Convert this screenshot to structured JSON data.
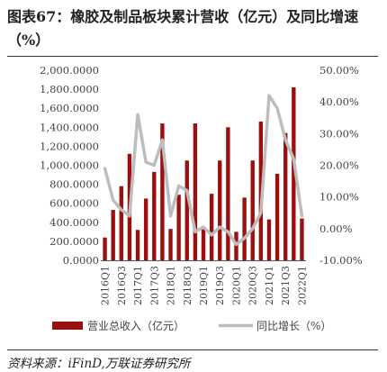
{
  "title": "图表67：橡胶及制品板块累计营收（亿元）及同比增速（%）",
  "source": "资料来源：iFinD,万联证券研究所",
  "colors": {
    "bar": "#9b0f0f",
    "line": "#bdbdbd",
    "axis": "#555555",
    "text": "#444444"
  },
  "chart_data": {
    "type": "bar",
    "categories": [
      "2016Q1",
      "2016Q2",
      "2016Q3",
      "2016Q4",
      "2017Q1",
      "2017Q2",
      "2017Q3",
      "2017Q4",
      "2018Q1",
      "2018Q2",
      "2018Q3",
      "2018Q4",
      "2019Q1",
      "2019Q2",
      "2019Q3",
      "2019Q4",
      "2020Q1",
      "2020Q2",
      "2020Q3",
      "2020Q4",
      "2021Q1",
      "2021Q2",
      "2021Q3",
      "2021Q4",
      "2022Q1"
    ],
    "x_tick_labels": [
      "2016Q1",
      "2016Q3",
      "2017Q1",
      "2017Q3",
      "2018Q1",
      "2018Q3",
      "2019Q1",
      "2019Q3",
      "2020Q1",
      "2020Q3",
      "2021Q1",
      "2021Q3",
      "2022Q1"
    ],
    "series": [
      {
        "name": "营业总收入（亿元）",
        "type": "bar",
        "axis": "left",
        "values": [
          240,
          530,
          780,
          1120,
          320,
          650,
          930,
          1440,
          330,
          690,
          1050,
          1440,
          350,
          700,
          1050,
          1400,
          300,
          660,
          1050,
          1460,
          430,
          910,
          1340,
          1820,
          440
        ]
      },
      {
        "name": "同比增长（%）",
        "type": "line",
        "axis": "right",
        "values": [
          19.0,
          9.0,
          6.0,
          4.0,
          36.0,
          21.0,
          20.0,
          28.0,
          4.0,
          13.5,
          12.0,
          -1.0,
          0.5,
          -2.0,
          0.5,
          -1.0,
          -5.0,
          -3.0,
          0.0,
          5.0,
          42.0,
          38.0,
          28.0,
          22.0,
          4.0
        ]
      }
    ],
    "y_left": {
      "min": 0,
      "max": 2000,
      "ticks": [
        "0.0000",
        "200.0000",
        "400.0000",
        "600.0000",
        "800.0000",
        "1,000.0000",
        "1,200.0000",
        "1,400.0000",
        "1,600.0000",
        "1,800.0000",
        "2,000.0000"
      ]
    },
    "y_right": {
      "min": -10,
      "max": 50,
      "ticks": [
        "-10.00%",
        "0.00%",
        "10.00%",
        "20.00%",
        "30.00%",
        "40.00%",
        "50.00%"
      ]
    },
    "legend_position": "bottom",
    "grid": false
  }
}
